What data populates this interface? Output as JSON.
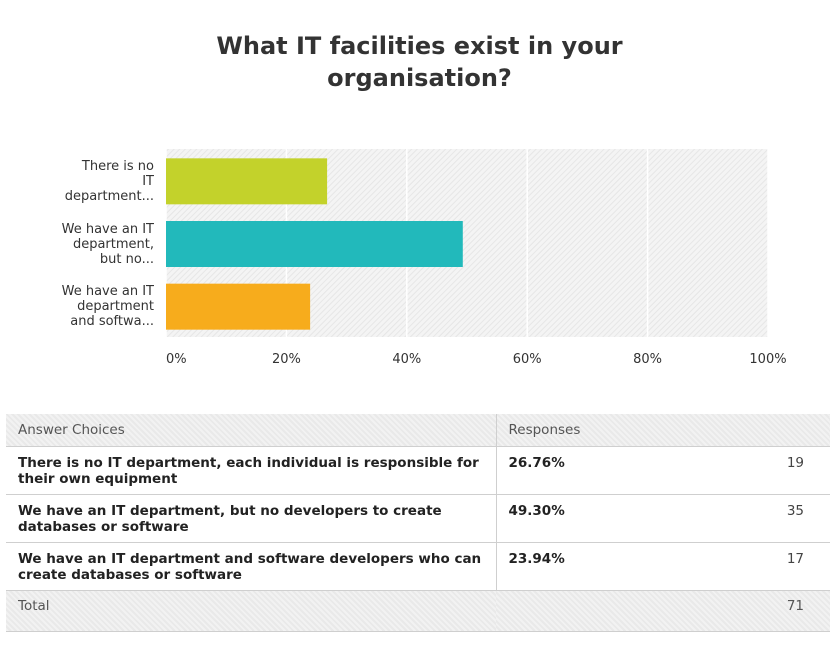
{
  "chart_data": {
    "type": "bar",
    "orientation": "horizontal",
    "title_lines": [
      "What IT facilities exist in your",
      "organisation?"
    ],
    "categories": [
      [
        "There is no",
        "IT",
        "department..."
      ],
      [
        "We have an IT",
        "department,",
        "but no..."
      ],
      [
        "We have an IT",
        "department",
        "and softwa..."
      ]
    ],
    "values": [
      26.76,
      49.3,
      23.94
    ],
    "colors": [
      "#c3d22b",
      "#22b9bb",
      "#f7ac1c"
    ],
    "xlim": [
      0,
      100
    ],
    "x_ticks": [
      "0%",
      "20%",
      "40%",
      "60%",
      "80%",
      "100%"
    ],
    "grid": true
  },
  "table": {
    "headers": [
      "Answer Choices",
      "Responses"
    ],
    "rows": [
      {
        "choice": "There is no IT department, each individual is responsible for their own equipment",
        "percent": "26.76%",
        "count": "19"
      },
      {
        "choice": "We have an IT department, but no developers to create databases or software",
        "percent": "49.30%",
        "count": "35"
      },
      {
        "choice": "We have an IT department and software developers who can create databases or software",
        "percent": "23.94%",
        "count": "17"
      }
    ],
    "total_label": "Total",
    "total_count": "71"
  }
}
